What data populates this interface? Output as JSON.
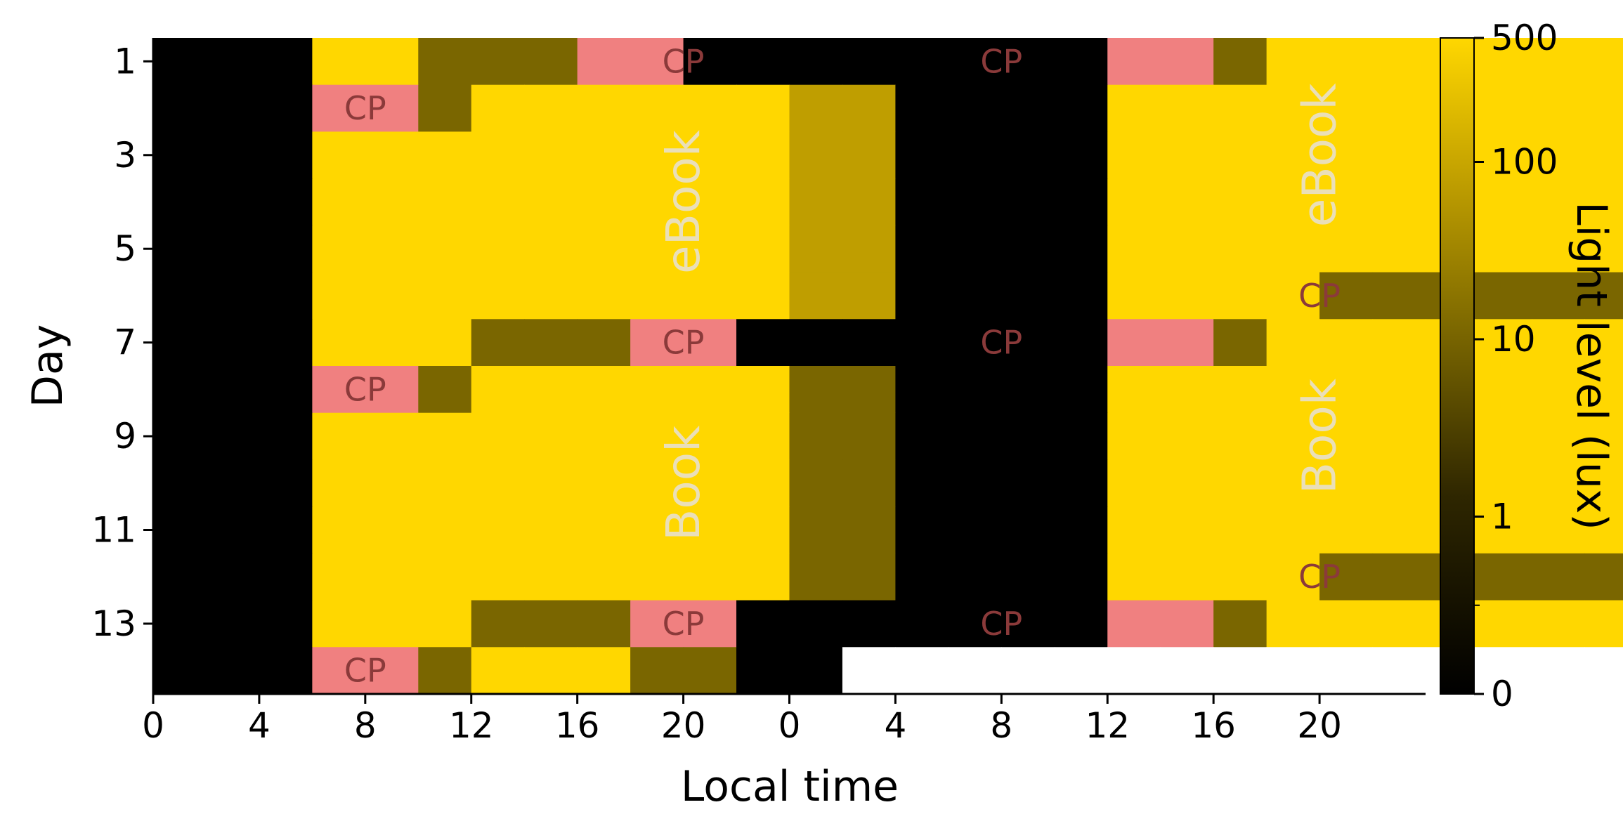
{
  "chart_data": {
    "type": "heatmap",
    "title": "",
    "xlabel": "Local time",
    "ylabel": "Day",
    "colorbar_label": "Light level (lux)",
    "colorbar_scale": "symlog",
    "colorbar_ticks": [
      "0",
      "1",
      "10",
      "100",
      "500"
    ],
    "colorbar_values": [
      0,
      1,
      10,
      100,
      500
    ],
    "clim": [
      0,
      500
    ],
    "x_ticks": [
      "0",
      "4",
      "8",
      "12",
      "16",
      "20",
      "0",
      "4",
      "8",
      "12",
      "16",
      "20"
    ],
    "x_tick_hours": [
      0,
      4,
      8,
      12,
      16,
      20,
      24,
      28,
      32,
      36,
      40,
      44
    ],
    "x_range_hours": [
      0,
      48
    ],
    "y_ticks": [
      "1",
      "3",
      "5",
      "7",
      "9",
      "11",
      "13"
    ],
    "y_tick_days": [
      1,
      3,
      5,
      7,
      9,
      11,
      13
    ],
    "days": 14,
    "bin_hours": 2,
    "levels": {
      "dark": 0,
      "dim": 5,
      "ebook": 40,
      "bright": 500
    },
    "colors": {
      "dark": "#000000",
      "dim": "#7a6600",
      "ebook": "#bf9e00",
      "bright": "#ffd700",
      "cp": "#f08080",
      "missing": "#ffffff"
    },
    "rows": [
      [
        "dark",
        "dark",
        "dark",
        "bright",
        "bright",
        "dim",
        "dim",
        "dim",
        "cp",
        "cp",
        "dark",
        "dark",
        "dark",
        "dark",
        "dark",
        "dark",
        "dark",
        "dark",
        "cp",
        "cp",
        "dim",
        "bright",
        "bright",
        "bright",
        "bright",
        "bright",
        "bright",
        "bright",
        "ebook",
        "ebook",
        "ebook",
        "dark"
      ],
      [
        "dark",
        "dark",
        "dark",
        "cp",
        "cp",
        "dim",
        "bright",
        "bright",
        "bright",
        "bright",
        "bright",
        "bright",
        "ebook",
        "ebook",
        "dark",
        "dark",
        "dark",
        "dark",
        "bright",
        "bright",
        "bright",
        "bright",
        "bright",
        "bright",
        "bright",
        "bright",
        "bright",
        "bright",
        "ebook",
        "ebook",
        "ebook",
        "dark"
      ],
      [
        "dark",
        "dark",
        "dark",
        "bright",
        "bright",
        "bright",
        "bright",
        "bright",
        "bright",
        "bright",
        "bright",
        "bright",
        "ebook",
        "ebook",
        "dark",
        "dark",
        "dark",
        "dark",
        "bright",
        "bright",
        "bright",
        "bright",
        "bright",
        "bright",
        "bright",
        "bright",
        "bright",
        "bright",
        "ebook",
        "ebook",
        "ebook",
        "dark"
      ],
      [
        "dark",
        "dark",
        "dark",
        "bright",
        "bright",
        "bright",
        "bright",
        "bright",
        "bright",
        "bright",
        "bright",
        "bright",
        "ebook",
        "ebook",
        "dark",
        "dark",
        "dark",
        "dark",
        "bright",
        "bright",
        "bright",
        "bright",
        "bright",
        "bright",
        "bright",
        "bright",
        "bright",
        "bright",
        "ebook",
        "ebook",
        "ebook",
        "dark"
      ],
      [
        "dark",
        "dark",
        "dark",
        "bright",
        "bright",
        "bright",
        "bright",
        "bright",
        "bright",
        "bright",
        "bright",
        "bright",
        "ebook",
        "ebook",
        "dark",
        "dark",
        "dark",
        "dark",
        "bright",
        "bright",
        "bright",
        "bright",
        "bright",
        "bright",
        "bright",
        "bright",
        "bright",
        "bright",
        "ebook",
        "ebook",
        "ebook",
        "dark"
      ],
      [
        "dark",
        "dark",
        "dark",
        "bright",
        "bright",
        "bright",
        "bright",
        "bright",
        "bright",
        "bright",
        "bright",
        "bright",
        "ebook",
        "ebook",
        "dark",
        "dark",
        "dark",
        "dark",
        "bright",
        "bright",
        "bright",
        "bright",
        "dim",
        "dim",
        "dim",
        "dim",
        "dim",
        "dim",
        "cp",
        "cp",
        "cp",
        "dark"
      ],
      [
        "dark",
        "dark",
        "dark",
        "bright",
        "bright",
        "bright",
        "dim",
        "dim",
        "dim",
        "cp",
        "cp",
        "dark",
        "dark",
        "dark",
        "dark",
        "dark",
        "dark",
        "dark",
        "cp",
        "cp",
        "dim",
        "bright",
        "bright",
        "bright",
        "bright",
        "bright",
        "bright",
        "bright",
        "dim",
        "dim",
        "dim",
        "dark"
      ],
      [
        "dark",
        "dark",
        "dark",
        "cp",
        "cp",
        "dim",
        "bright",
        "bright",
        "bright",
        "bright",
        "bright",
        "bright",
        "dim",
        "dim",
        "dark",
        "dark",
        "dark",
        "dark",
        "bright",
        "bright",
        "bright",
        "bright",
        "bright",
        "bright",
        "bright",
        "bright",
        "bright",
        "bright",
        "dim",
        "dim",
        "dim",
        "dark"
      ],
      [
        "dark",
        "dark",
        "dark",
        "bright",
        "bright",
        "bright",
        "bright",
        "bright",
        "bright",
        "bright",
        "bright",
        "bright",
        "dim",
        "dim",
        "dark",
        "dark",
        "dark",
        "dark",
        "bright",
        "bright",
        "bright",
        "bright",
        "bright",
        "bright",
        "bright",
        "bright",
        "bright",
        "bright",
        "dim",
        "dim",
        "dim",
        "dark"
      ],
      [
        "dark",
        "dark",
        "dark",
        "bright",
        "bright",
        "bright",
        "bright",
        "bright",
        "bright",
        "bright",
        "bright",
        "bright",
        "dim",
        "dim",
        "dark",
        "dark",
        "dark",
        "dark",
        "bright",
        "bright",
        "bright",
        "bright",
        "bright",
        "bright",
        "bright",
        "bright",
        "bright",
        "bright",
        "dim",
        "dim",
        "dim",
        "dark"
      ],
      [
        "dark",
        "dark",
        "dark",
        "bright",
        "bright",
        "bright",
        "bright",
        "bright",
        "bright",
        "bright",
        "bright",
        "bright",
        "dim",
        "dim",
        "dark",
        "dark",
        "dark",
        "dark",
        "bright",
        "bright",
        "bright",
        "bright",
        "bright",
        "bright",
        "bright",
        "bright",
        "bright",
        "bright",
        "dim",
        "dim",
        "dim",
        "dark"
      ],
      [
        "dark",
        "dark",
        "dark",
        "bright",
        "bright",
        "bright",
        "bright",
        "bright",
        "bright",
        "bright",
        "bright",
        "bright",
        "dim",
        "dim",
        "dark",
        "dark",
        "dark",
        "dark",
        "bright",
        "bright",
        "bright",
        "bright",
        "dim",
        "dim",
        "dim",
        "dim",
        "dim",
        "dim",
        "cp",
        "cp",
        "cp",
        "dark"
      ],
      [
        "dark",
        "dark",
        "dark",
        "bright",
        "bright",
        "bright",
        "dim",
        "dim",
        "dim",
        "cp",
        "cp",
        "dark",
        "dark",
        "dark",
        "dark",
        "dark",
        "dark",
        "dark",
        "cp",
        "cp",
        "dim",
        "bright",
        "bright",
        "bright",
        "bright",
        "bright",
        "bright",
        "bright",
        "dim",
        "dim",
        "dim",
        "dark"
      ],
      [
        "dark",
        "dark",
        "dark",
        "cp",
        "cp",
        "dim",
        "bright",
        "bright",
        "bright",
        "dim",
        "dim",
        "dark",
        "dark",
        "missing",
        "missing",
        "missing",
        "missing",
        "missing",
        "missing",
        "missing",
        "missing",
        "missing",
        "missing",
        "missing",
        "missing",
        "missing",
        "missing",
        "missing",
        "missing",
        "missing",
        "missing",
        "missing"
      ]
    ],
    "annotations": [
      {
        "text": "CP",
        "day": 1,
        "start_hour": 18,
        "end_hour": 22
      },
      {
        "text": "CP",
        "day": 1,
        "start_hour": 30,
        "end_hour": 34
      },
      {
        "text": "CP",
        "day": 2,
        "start_hour": 6,
        "end_hour": 10
      },
      {
        "text": "eBook",
        "day_start": 2,
        "day_end": 6,
        "start_hour": 18,
        "end_hour": 22,
        "vertical": true
      },
      {
        "text": "eBook",
        "day_start": 1,
        "day_end": 5,
        "start_hour": 42,
        "end_hour": 46,
        "vertical": true
      },
      {
        "text": "CP",
        "day": 6,
        "start_hour": 42,
        "end_hour": 46
      },
      {
        "text": "CP",
        "day": 7,
        "start_hour": 18,
        "end_hour": 22
      },
      {
        "text": "CP",
        "day": 7,
        "start_hour": 30,
        "end_hour": 34
      },
      {
        "text": "CP",
        "day": 8,
        "start_hour": 6,
        "end_hour": 10
      },
      {
        "text": "Book",
        "day_start": 8,
        "day_end": 12,
        "start_hour": 18,
        "end_hour": 22,
        "vertical": true
      },
      {
        "text": "Book",
        "day_start": 7,
        "day_end": 11,
        "start_hour": 42,
        "end_hour": 46,
        "vertical": true
      },
      {
        "text": "CP",
        "day": 12,
        "start_hour": 42,
        "end_hour": 46
      },
      {
        "text": "CP",
        "day": 13,
        "start_hour": 18,
        "end_hour": 22
      },
      {
        "text": "CP",
        "day": 13,
        "start_hour": 30,
        "end_hour": 34
      },
      {
        "text": "CP",
        "day": 14,
        "start_hour": 6,
        "end_hour": 10
      }
    ]
  }
}
